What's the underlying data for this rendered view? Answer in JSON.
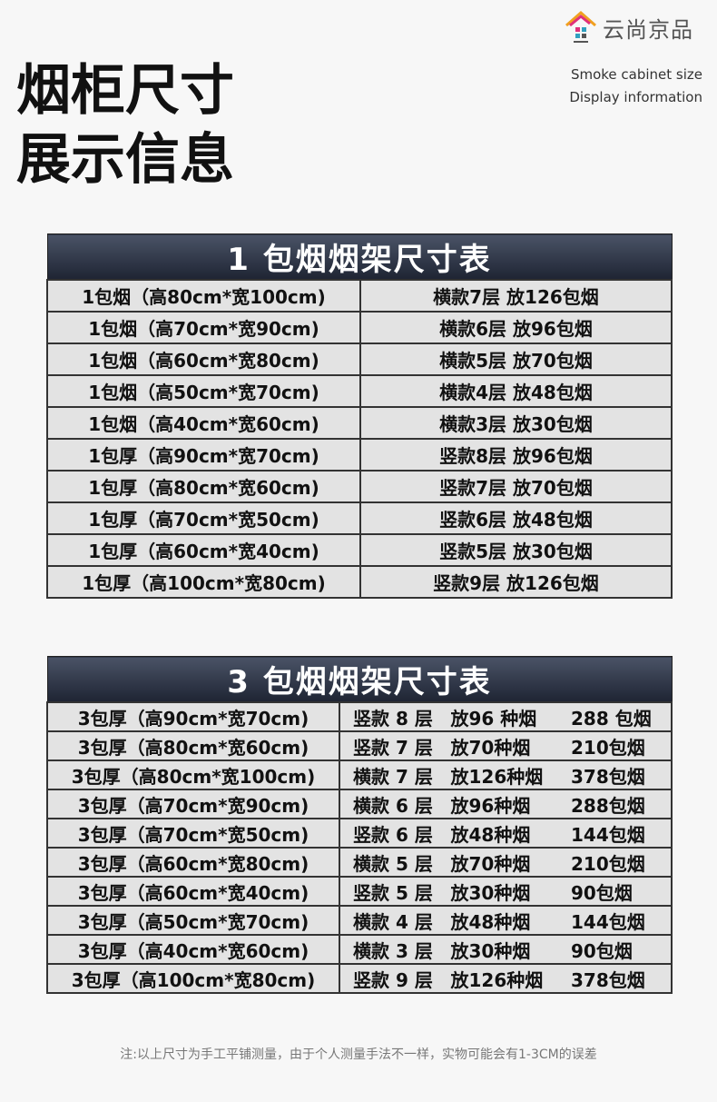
{
  "brand": {
    "name": "云尚京品"
  },
  "title": [
    "烟柜尺寸",
    "展示信息"
  ],
  "subtitle": [
    "Smoke cabinet size",
    "Display information"
  ],
  "table1": {
    "title": "1 包烟烟架尺寸表",
    "rows": [
      [
        "1包烟（高80cm*宽100cm)",
        "横款7层 放126包烟"
      ],
      [
        "1包烟（高70cm*宽90cm)",
        "横款6层 放96包烟"
      ],
      [
        "1包烟（高60cm*宽80cm)",
        "横款5层 放70包烟"
      ],
      [
        "1包烟（高50cm*宽70cm)",
        "横款4层 放48包烟"
      ],
      [
        "1包烟（高40cm*宽60cm)",
        "横款3层 放30包烟"
      ],
      [
        "1包厚（高90cm*宽70cm)",
        "竖款8层 放96包烟"
      ],
      [
        "1包厚（高80cm*宽60cm)",
        "竖款7层 放70包烟"
      ],
      [
        "1包厚（高70cm*宽50cm)",
        "竖款6层 放48包烟"
      ],
      [
        "1包厚（高60cm*宽40cm)",
        "竖款5层 放30包烟"
      ],
      [
        "1包厚（高100cm*宽80cm)",
        "竖款9层 放126包烟"
      ]
    ]
  },
  "table2": {
    "title": "3 包烟烟架尺寸表",
    "rows": [
      [
        "3包厚（高90cm*宽70cm)",
        "竖款 8 层",
        "放96 种烟",
        "288 包烟"
      ],
      [
        "3包厚（高80cm*宽60cm)",
        "竖款 7 层",
        "放70种烟",
        "210包烟"
      ],
      [
        "3包厚（高80cm*宽100cm)",
        "横款 7 层",
        "放126种烟",
        "378包烟"
      ],
      [
        "3包厚（高70cm*宽90cm)",
        "横款 6 层",
        "放96种烟",
        "288包烟"
      ],
      [
        "3包厚（高70cm*宽50cm)",
        "竖款 6 层",
        "放48种烟",
        "144包烟"
      ],
      [
        "3包厚（高60cm*宽80cm)",
        "横款 5 层",
        "放70种烟",
        "210包烟"
      ],
      [
        "3包厚（高60cm*宽40cm)",
        "竖款 5 层",
        "放30种烟",
        "90包烟"
      ],
      [
        "3包厚（高50cm*宽70cm)",
        "横款 4 层",
        "放48种烟",
        "144包烟"
      ],
      [
        "3包厚（高40cm*宽60cm)",
        "横款 3 层",
        "放30种烟",
        "90包烟"
      ],
      [
        "3包厚（高100cm*宽80cm)",
        "竖款 9 层",
        "放126种烟",
        "378包烟"
      ]
    ]
  },
  "note": "注:以上尺寸为手工平铺测量，由于个人测量手法不一样，实物可能会有1-3CM的误差"
}
